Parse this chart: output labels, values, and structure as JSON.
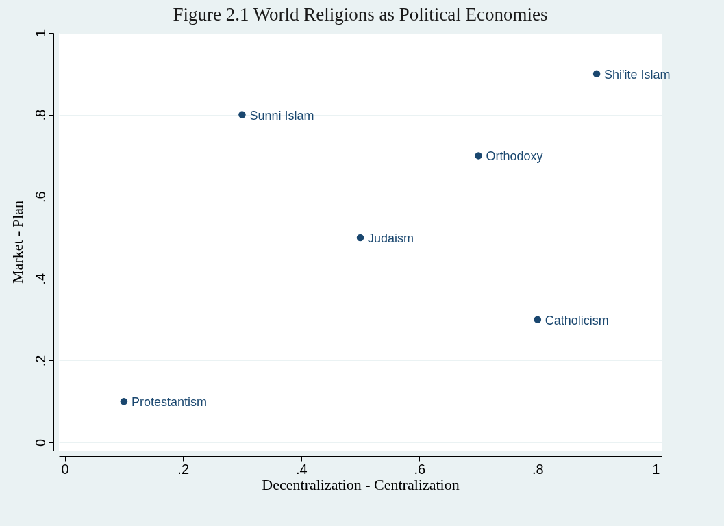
{
  "chart_data": {
    "type": "scatter",
    "title": "Figure 2.1 World Religions as Political Economies",
    "xlabel": "Decentralization - Centralization",
    "ylabel": "Market - Plan",
    "x": [
      0.1,
      0.3,
      0.5,
      0.7,
      0.8,
      0.9
    ],
    "series": [
      {
        "color": "#1a476f",
        "values": [
          0.1,
          0.8,
          0.5,
          0.7,
          0.3,
          0.9
        ]
      }
    ],
    "annotations": [
      {
        "text": "Protestantism",
        "x": 0.1,
        "y": 0.1
      },
      {
        "text": "Sunni Islam",
        "x": 0.3,
        "y": 0.8
      },
      {
        "text": "Judaism",
        "x": 0.5,
        "y": 0.5
      },
      {
        "text": "Orthodoxy",
        "x": 0.7,
        "y": 0.7
      },
      {
        "text": "Catholicism",
        "x": 0.8,
        "y": 0.3
      },
      {
        "text": "Shi'ite Islam",
        "x": 0.9,
        "y": 0.9
      }
    ],
    "xlim": [
      -0.01,
      1.01
    ],
    "ylim": [
      -0.02,
      1.0
    ],
    "xticks": [
      0,
      {
        "value": 0.2,
        "label": ".2"
      },
      {
        "value": 0.4,
        "label": ".4"
      },
      {
        "value": 0.6,
        "label": ".6"
      },
      {
        "value": 0.8,
        "label": ".8"
      },
      1
    ],
    "yticks": [
      0,
      {
        "value": 0.2,
        "label": ".2"
      },
      {
        "value": 0.4,
        "label": ".4"
      },
      {
        "value": 0.6,
        "label": ".6"
      },
      {
        "value": 0.8,
        "label": ".8"
      },
      1
    ],
    "grid": "y",
    "marker": "circle"
  }
}
